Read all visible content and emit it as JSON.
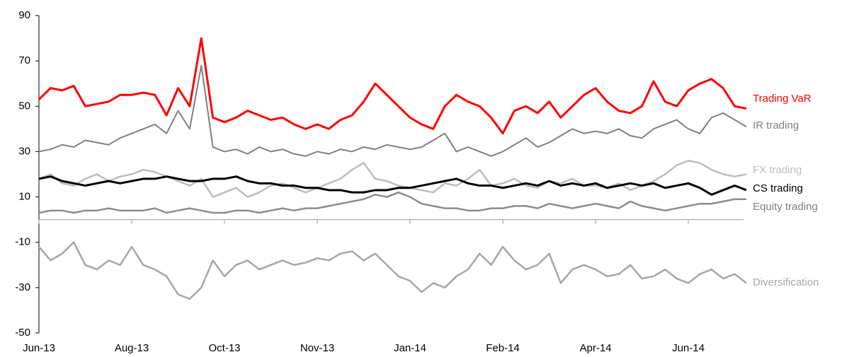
{
  "chart_data": {
    "type": "line",
    "categories": [
      "Jun-13",
      null,
      null,
      null,
      null,
      null,
      null,
      null,
      "Aug-13",
      null,
      null,
      null,
      null,
      null,
      null,
      null,
      "Oct-13",
      null,
      null,
      null,
      null,
      null,
      null,
      null,
      "Nov-13",
      null,
      null,
      null,
      null,
      null,
      null,
      null,
      "Jan-14",
      null,
      null,
      null,
      null,
      null,
      null,
      null,
      "Feb-14",
      null,
      null,
      null,
      null,
      null,
      null,
      null,
      "Apr-14",
      null,
      null,
      null,
      null,
      null,
      null,
      null,
      "Jun-14",
      null,
      null,
      null,
      null,
      null
    ],
    "ylim": [
      -50,
      90
    ],
    "yticks": [
      -50,
      -30,
      -10,
      10,
      30,
      50,
      70,
      90
    ],
    "series": [
      {
        "name": "Trading VaR",
        "color": "#ff0000",
        "values": [
          53,
          58,
          57,
          59,
          50,
          51,
          52,
          55,
          55,
          56,
          55,
          46,
          58,
          50,
          80,
          45,
          43,
          45,
          48,
          46,
          44,
          45,
          42,
          40,
          42,
          40,
          44,
          46,
          52,
          60,
          55,
          50,
          45,
          42,
          40,
          50,
          55,
          52,
          50,
          45,
          38,
          48,
          50,
          47,
          52,
          45,
          50,
          55,
          58,
          52,
          48,
          47,
          50,
          61,
          52,
          50,
          57,
          60,
          62,
          58,
          50,
          49
        ]
      },
      {
        "name": "IR trading",
        "color": "#808080",
        "values": [
          30,
          31,
          33,
          32,
          35,
          34,
          33,
          36,
          38,
          40,
          42,
          38,
          48,
          40,
          68,
          32,
          30,
          31,
          29,
          32,
          30,
          31,
          29,
          28,
          30,
          29,
          31,
          30,
          32,
          31,
          33,
          32,
          31,
          32,
          35,
          38,
          30,
          32,
          30,
          28,
          30,
          33,
          36,
          32,
          34,
          37,
          40,
          38,
          39,
          38,
          40,
          37,
          36,
          40,
          42,
          44,
          40,
          38,
          45,
          47,
          44,
          41
        ]
      },
      {
        "name": "FX trading",
        "color": "#bdbdbd",
        "values": [
          18,
          20,
          16,
          15,
          18,
          20,
          17,
          19,
          20,
          22,
          21,
          19,
          17,
          15,
          18,
          10,
          12,
          14,
          10,
          12,
          15,
          16,
          14,
          12,
          14,
          16,
          18,
          22,
          25,
          18,
          17,
          15,
          14,
          13,
          12,
          16,
          15,
          18,
          22,
          15,
          16,
          18,
          15,
          14,
          17,
          16,
          18,
          15,
          15,
          14,
          16,
          13,
          15,
          17,
          20,
          24,
          26,
          25,
          22,
          20,
          19,
          20
        ]
      },
      {
        "name": "CS trading",
        "color": "#000000",
        "values": [
          18,
          19,
          17,
          16,
          15,
          16,
          17,
          16,
          17,
          18,
          18,
          19,
          18,
          17,
          17,
          18,
          18,
          19,
          17,
          16,
          16,
          15,
          15,
          14,
          14,
          13,
          13,
          12,
          12,
          13,
          13,
          14,
          14,
          15,
          16,
          17,
          18,
          16,
          15,
          15,
          14,
          15,
          16,
          15,
          17,
          15,
          16,
          15,
          16,
          14,
          15,
          16,
          15,
          16,
          14,
          15,
          16,
          14,
          11,
          13,
          15,
          13
        ]
      },
      {
        "name": "Equity trading",
        "color": "#8c8c8c",
        "values": [
          3,
          4,
          4,
          3,
          4,
          4,
          5,
          4,
          4,
          4,
          5,
          3,
          4,
          5,
          4,
          3,
          3,
          4,
          4,
          3,
          4,
          5,
          4,
          5,
          5,
          6,
          7,
          8,
          9,
          11,
          10,
          12,
          10,
          7,
          6,
          5,
          5,
          4,
          4,
          5,
          5,
          6,
          6,
          5,
          7,
          6,
          5,
          6,
          7,
          6,
          5,
          8,
          6,
          5,
          4,
          5,
          6,
          7,
          7,
          8,
          9,
          9
        ]
      },
      {
        "name": "Diversification",
        "color": "#a6a6a6",
        "values": [
          -12,
          -18,
          -15,
          -10,
          -20,
          -22,
          -18,
          -20,
          -12,
          -20,
          -22,
          -25,
          -33,
          -35,
          -30,
          -18,
          -25,
          -20,
          -18,
          -22,
          -20,
          -18,
          -20,
          -19,
          -17,
          -18,
          -15,
          -14,
          -18,
          -15,
          -20,
          -25,
          -27,
          -32,
          -28,
          -30,
          -25,
          -22,
          -15,
          -20,
          -12,
          -18,
          -22,
          -20,
          -15,
          -28,
          -22,
          -20,
          -22,
          -25,
          -24,
          -20,
          -26,
          -25,
          -22,
          -26,
          -28,
          -24,
          -22,
          -26,
          -24,
          -28
        ]
      }
    ]
  }
}
